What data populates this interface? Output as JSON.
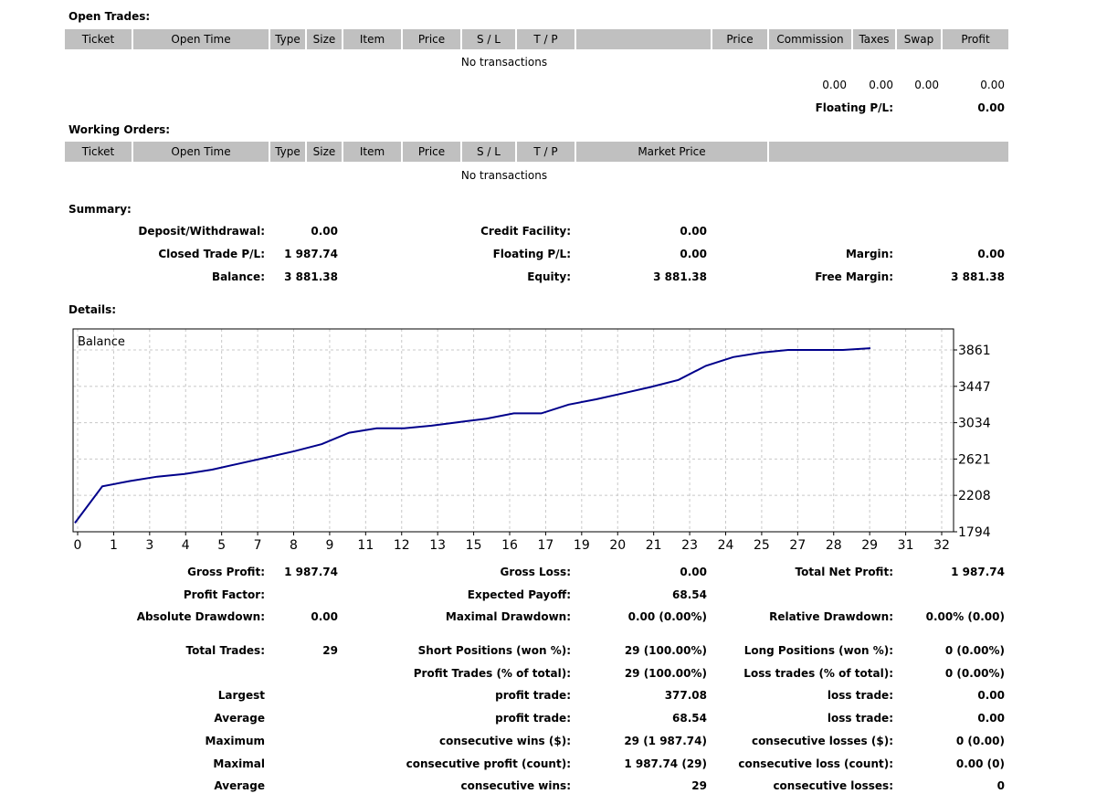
{
  "open_trades": {
    "title": "Open Trades:",
    "columns": [
      "Ticket",
      "Open Time",
      "Type",
      "Size",
      "Item",
      "Price",
      "S / L",
      "T / P",
      "",
      "Price",
      "Commission",
      "Taxes",
      "Swap",
      "Profit"
    ],
    "empty_text": "No transactions",
    "totals": {
      "commission": "0.00",
      "taxes": "0.00",
      "swap": "0.00",
      "profit": "0.00"
    },
    "floating_label": "Floating P/L:",
    "floating_value": "0.00"
  },
  "working_orders": {
    "title": "Working Orders:",
    "columns": [
      "Ticket",
      "Open Time",
      "Type",
      "Size",
      "Item",
      "Price",
      "S / L",
      "T / P",
      "Market Price",
      ""
    ],
    "empty_text": "No transactions"
  },
  "summary": {
    "title": "Summary:",
    "deposit_label": "Deposit/Withdrawal:",
    "deposit_value": "0.00",
    "credit_label": "Credit Facility:",
    "credit_value": "0.00",
    "closed_pl_label": "Closed Trade P/L:",
    "closed_pl_value": "1 987.74",
    "floating_label": "Floating P/L:",
    "floating_value": "0.00",
    "margin_label": "Margin:",
    "margin_value": "0.00",
    "balance_label": "Balance:",
    "balance_value": "3 881.38",
    "equity_label": "Equity:",
    "equity_value": "3 881.38",
    "free_margin_label": "Free Margin:",
    "free_margin_value": "3 881.38"
  },
  "details": {
    "title": "Details:",
    "rows": [
      [
        "Gross Profit:",
        "1 987.74",
        "Gross Loss:",
        "0.00",
        "Total Net Profit:",
        "1 987.74"
      ],
      [
        "Profit Factor:",
        "",
        "Expected Payoff:",
        "68.54",
        "",
        ""
      ],
      [
        "Absolute Drawdown:",
        "0.00",
        "Maximal Drawdown:",
        "0.00 (0.00%)",
        "Relative Drawdown:",
        "0.00% (0.00)"
      ],
      [
        "Total Trades:",
        "29",
        "Short Positions (won %):",
        "29 (100.00%)",
        "Long Positions (won %):",
        "0 (0.00%)"
      ],
      [
        "",
        "",
        "Profit Trades (% of total):",
        "29 (100.00%)",
        "Loss trades (% of total):",
        "0 (0.00%)"
      ],
      [
        "Largest",
        "",
        "profit trade:",
        "377.08",
        "loss trade:",
        "0.00"
      ],
      [
        "Average",
        "",
        "profit trade:",
        "68.54",
        "loss trade:",
        "0.00"
      ],
      [
        "Maximum",
        "",
        "consecutive wins ($):",
        "29 (1 987.74)",
        "consecutive losses ($):",
        "0 (0.00)"
      ],
      [
        "Maximal",
        "",
        "consecutive profit (count):",
        "1 987.74 (29)",
        "consecutive loss (count):",
        "0.00 (0)"
      ],
      [
        "Average",
        "",
        "consecutive wins:",
        "29",
        "consecutive losses:",
        "0"
      ]
    ]
  },
  "chart_data": {
    "type": "line",
    "title": "Balance",
    "x_ticks": [
      "0",
      "1",
      "3",
      "4",
      "5",
      "7",
      "8",
      "9",
      "11",
      "12",
      "13",
      "15",
      "16",
      "17",
      "19",
      "20",
      "21",
      "23",
      "24",
      "25",
      "27",
      "28",
      "29",
      "31",
      "32"
    ],
    "y_ticks": [
      1794,
      2208,
      2621,
      3034,
      3447,
      3861
    ],
    "ylim": [
      1794,
      3861
    ],
    "xlim": [
      0,
      32
    ],
    "grid": true,
    "series": [
      {
        "color": "#00008b",
        "x": [
          0,
          1,
          2,
          3,
          4,
          5,
          6,
          7,
          8,
          9,
          10,
          11,
          12,
          13,
          14,
          15,
          16,
          17,
          18,
          19,
          20,
          21,
          22,
          23,
          24,
          25,
          26,
          27,
          28,
          29
        ],
        "y": [
          1894,
          2310,
          2370,
          2420,
          2450,
          2500,
          2570,
          2640,
          2710,
          2790,
          2920,
          2970,
          2970,
          3000,
          3040,
          3080,
          3140,
          3140,
          3240,
          3300,
          3370,
          3440,
          3520,
          3680,
          3780,
          3830,
          3861,
          3861,
          3861,
          3881
        ]
      }
    ]
  }
}
